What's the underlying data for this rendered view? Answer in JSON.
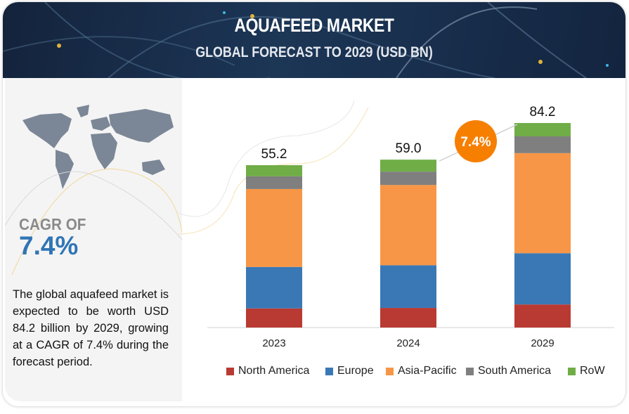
{
  "header": {
    "title": "AQUAFEED MARKET",
    "subtitle": "GLOBAL FORECAST TO 2029 (USD BN)"
  },
  "left_panel": {
    "cagr_label": "CAGR OF",
    "cagr_value": "7.4%",
    "description": "The global aquafeed market is expected to be worth USD 84.2 billion by 2029, growing at a CAGR of 7.4% during the forecast period."
  },
  "chart_data": {
    "type": "bar",
    "stacked": true,
    "title": "AQUAFEED MARKET, GLOBAL FORECAST TO 2029 (USD BN)",
    "categories": [
      "2023",
      "2024",
      "2029"
    ],
    "totals": [
      "55.2",
      "59.0",
      "84.2"
    ],
    "series": [
      {
        "name": "North America",
        "color": "#b93a32",
        "values": [
          6.5,
          6.9,
          9.5
        ]
      },
      {
        "name": "Europe",
        "color": "#3a78b5",
        "values": [
          14.1,
          15.0,
          21.1
        ]
      },
      {
        "name": "Asia-Pacific",
        "color": "#f79646",
        "values": [
          26.5,
          28.2,
          41.2
        ]
      },
      {
        "name": "South America",
        "color": "#7f7f7f",
        "values": [
          4.3,
          4.7,
          6.9
        ]
      },
      {
        "name": "RoW",
        "color": "#70ad47",
        "values": [
          3.8,
          4.2,
          5.5
        ]
      }
    ],
    "cagr_badge": "7.4%",
    "badge_color": "#f77f00",
    "xlabel": "",
    "ylabel": "",
    "legend": "bottom",
    "grid": false
  }
}
